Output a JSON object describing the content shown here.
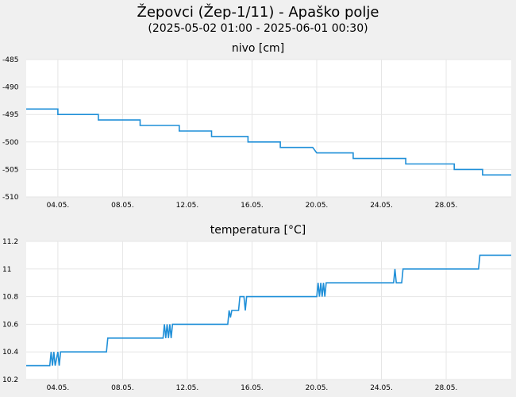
{
  "header": {
    "title": "Žepovci (Žep-1/11) - Apaško polje",
    "subtitle": "(2025-05-02 01:00 - 2025-06-01 00:30)"
  },
  "colors": {
    "background": "#f0f0f0",
    "plot_background": "#ffffff",
    "grid": "#e6e6e6",
    "line": "#1f8fd8"
  },
  "chart_data": [
    {
      "type": "line",
      "title": "nivo [cm]",
      "xlabel": "",
      "ylabel": "",
      "x_range": [
        "2025-05-02 01:00",
        "2025-06-01 00:30"
      ],
      "xticks": [
        "04.05.",
        "08.05.",
        "12.05.",
        "16.05.",
        "20.05.",
        "24.05.",
        "28.05."
      ],
      "xtick_dates": [
        "2025-05-04",
        "2025-05-08",
        "2025-05-12",
        "2025-05-16",
        "2025-05-20",
        "2025-05-24",
        "2025-05-28"
      ],
      "ylim": [
        -510,
        -485
      ],
      "yticks": [
        "-485",
        "-490",
        "-495",
        "-500",
        "-505",
        "-510"
      ],
      "ytick_values": [
        -485,
        -490,
        -495,
        -500,
        -505,
        -510
      ],
      "grid": true,
      "series": [
        {
          "points": [
            [
              "2025-05-02 01:00",
              -494
            ],
            [
              "2025-05-04 00:00",
              -494
            ],
            [
              "2025-05-04 00:00",
              -495
            ],
            [
              "2025-05-06 12:00",
              -495
            ],
            [
              "2025-05-06 12:00",
              -496
            ],
            [
              "2025-05-09 02:00",
              -496
            ],
            [
              "2025-05-09 02:00",
              -497
            ],
            [
              "2025-05-11 12:00",
              -497
            ],
            [
              "2025-05-11 12:00",
              -498
            ],
            [
              "2025-05-13 12:00",
              -498
            ],
            [
              "2025-05-13 12:00",
              -499
            ],
            [
              "2025-05-15 18:00",
              -499
            ],
            [
              "2025-05-15 18:00",
              -500
            ],
            [
              "2025-05-17 18:00",
              -500
            ],
            [
              "2025-05-17 18:00",
              -501
            ],
            [
              "2025-05-19 18:00",
              -501
            ],
            [
              "2025-05-20 00:00",
              -502
            ],
            [
              "2025-05-22 06:00",
              -502
            ],
            [
              "2025-05-22 06:00",
              -503
            ],
            [
              "2025-05-25 12:00",
              -503
            ],
            [
              "2025-05-25 12:00",
              -504
            ],
            [
              "2025-05-28 12:00",
              -504
            ],
            [
              "2025-05-28 12:00",
              -505
            ],
            [
              "2025-05-30 06:00",
              -505
            ],
            [
              "2025-05-30 06:00",
              -506
            ],
            [
              "2025-06-01 00:30",
              -506
            ]
          ]
        }
      ]
    },
    {
      "type": "line",
      "title": "temperatura [°C]",
      "xlabel": "",
      "ylabel": "",
      "x_range": [
        "2025-05-02 01:00",
        "2025-06-01 00:30"
      ],
      "xticks": [
        "04.05.",
        "08.05.",
        "12.05.",
        "16.05.",
        "20.05.",
        "24.05.",
        "28.05."
      ],
      "xtick_dates": [
        "2025-05-04",
        "2025-05-08",
        "2025-05-12",
        "2025-05-16",
        "2025-05-20",
        "2025-05-24",
        "2025-05-28"
      ],
      "ylim": [
        10.2,
        11.2
      ],
      "yticks": [
        "10.2",
        "10.4",
        "10.6",
        "10.8",
        "11",
        "11.2"
      ],
      "ytick_values": [
        10.2,
        10.4,
        10.6,
        10.8,
        11.0,
        11.2
      ],
      "grid": true,
      "series": [
        {
          "points": [
            [
              "2025-05-02 01:00",
              10.3
            ],
            [
              "2025-05-03 12:00",
              10.3
            ],
            [
              "2025-05-03 14:00",
              10.4
            ],
            [
              "2025-05-03 16:00",
              10.3
            ],
            [
              "2025-05-03 18:00",
              10.4
            ],
            [
              "2025-05-03 20:00",
              10.3
            ],
            [
              "2025-05-04 00:00",
              10.4
            ],
            [
              "2025-05-04 02:00",
              10.3
            ],
            [
              "2025-05-04 04:00",
              10.4
            ],
            [
              "2025-05-04 06:00",
              10.4
            ],
            [
              "2025-05-07 00:00",
              10.4
            ],
            [
              "2025-05-07 02:00",
              10.5
            ],
            [
              "2025-05-10 12:00",
              10.5
            ],
            [
              "2025-05-10 14:00",
              10.6
            ],
            [
              "2025-05-10 16:00",
              10.5
            ],
            [
              "2025-05-10 18:00",
              10.6
            ],
            [
              "2025-05-10 20:00",
              10.5
            ],
            [
              "2025-05-10 22:00",
              10.6
            ],
            [
              "2025-05-11 00:00",
              10.5
            ],
            [
              "2025-05-11 02:00",
              10.6
            ],
            [
              "2025-05-14 12:00",
              10.6
            ],
            [
              "2025-05-14 14:00",
              10.7
            ],
            [
              "2025-05-14 16:00",
              10.65
            ],
            [
              "2025-05-14 18:00",
              10.7
            ],
            [
              "2025-05-15 04:00",
              10.7
            ],
            [
              "2025-05-15 06:00",
              10.8
            ],
            [
              "2025-05-15 12:00",
              10.8
            ],
            [
              "2025-05-15 14:00",
              10.7
            ],
            [
              "2025-05-15 16:00",
              10.8
            ],
            [
              "2025-05-15 18:00",
              10.8
            ],
            [
              "2025-05-20 00:00",
              10.8
            ],
            [
              "2025-05-20 02:00",
              10.9
            ],
            [
              "2025-05-20 04:00",
              10.8
            ],
            [
              "2025-05-20 06:00",
              10.9
            ],
            [
              "2025-05-20 08:00",
              10.8
            ],
            [
              "2025-05-20 10:00",
              10.9
            ],
            [
              "2025-05-20 12:00",
              10.8
            ],
            [
              "2025-05-20 14:00",
              10.9
            ],
            [
              "2025-05-24 18:00",
              10.9
            ],
            [
              "2025-05-24 20:00",
              11.0
            ],
            [
              "2025-05-24 22:00",
              10.9
            ],
            [
              "2025-05-25 06:00",
              10.9
            ],
            [
              "2025-05-25 08:00",
              11.0
            ],
            [
              "2025-05-30 00:00",
              11.0
            ],
            [
              "2025-05-30 02:00",
              11.1
            ],
            [
              "2025-06-01 00:30",
              11.1
            ]
          ]
        }
      ]
    }
  ]
}
